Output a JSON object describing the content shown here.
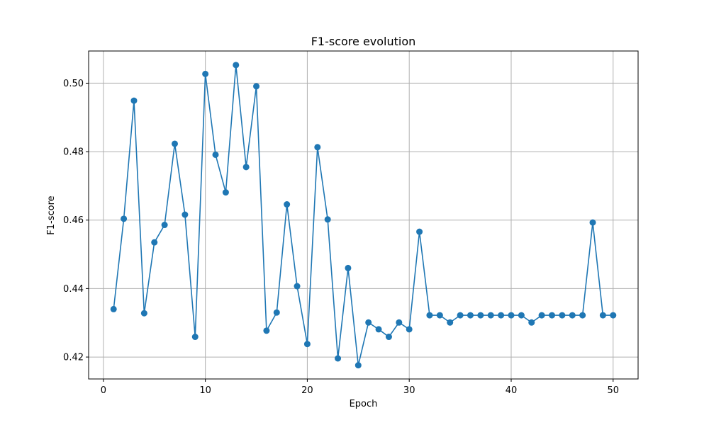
{
  "chart_data": {
    "type": "line",
    "title": "F1-score evolution",
    "xlabel": "Epoch",
    "ylabel": "F1-score",
    "xlim": [
      -1.45,
      52.45
    ],
    "ylim": [
      0.4136,
      0.5094
    ],
    "xticks": [
      0,
      10,
      20,
      30,
      40,
      50
    ],
    "yticks": [
      0.42,
      0.44,
      0.46,
      0.48,
      0.5
    ],
    "grid": true,
    "legend": "none",
    "marker": "circle",
    "colors": {
      "line": "#1f77b4",
      "grid": "#b0b0b0",
      "axes": "#000000"
    },
    "series": [
      {
        "x": [
          1,
          2,
          3,
          4,
          5,
          6,
          7,
          8,
          9,
          10,
          11,
          12,
          13,
          14,
          15,
          16,
          17,
          18,
          19,
          20,
          21,
          22,
          23,
          24,
          25,
          26,
          27,
          28,
          29,
          30,
          31,
          32,
          33,
          34,
          35,
          36,
          37,
          38,
          39,
          40,
          41,
          42,
          43,
          44,
          45,
          46,
          47,
          48,
          49,
          50
        ],
        "values": [
          0.434,
          0.4604,
          0.4949,
          0.4328,
          0.4535,
          0.4586,
          0.4823,
          0.4616,
          0.4259,
          0.5027,
          0.4791,
          0.4681,
          0.5053,
          0.4755,
          0.4991,
          0.4277,
          0.433,
          0.4646,
          0.4407,
          0.4238,
          0.4813,
          0.4602,
          0.4196,
          0.446,
          0.4176,
          0.4301,
          0.4281,
          0.4259,
          0.4301,
          0.4281,
          0.4566,
          0.4322,
          0.4322,
          0.4301,
          0.4322,
          0.4322,
          0.4322,
          0.4322,
          0.4322,
          0.4322,
          0.4322,
          0.4301,
          0.4322,
          0.4322,
          0.4322,
          0.4322,
          0.4322,
          0.4593,
          0.4322,
          0.4322
        ]
      }
    ]
  }
}
